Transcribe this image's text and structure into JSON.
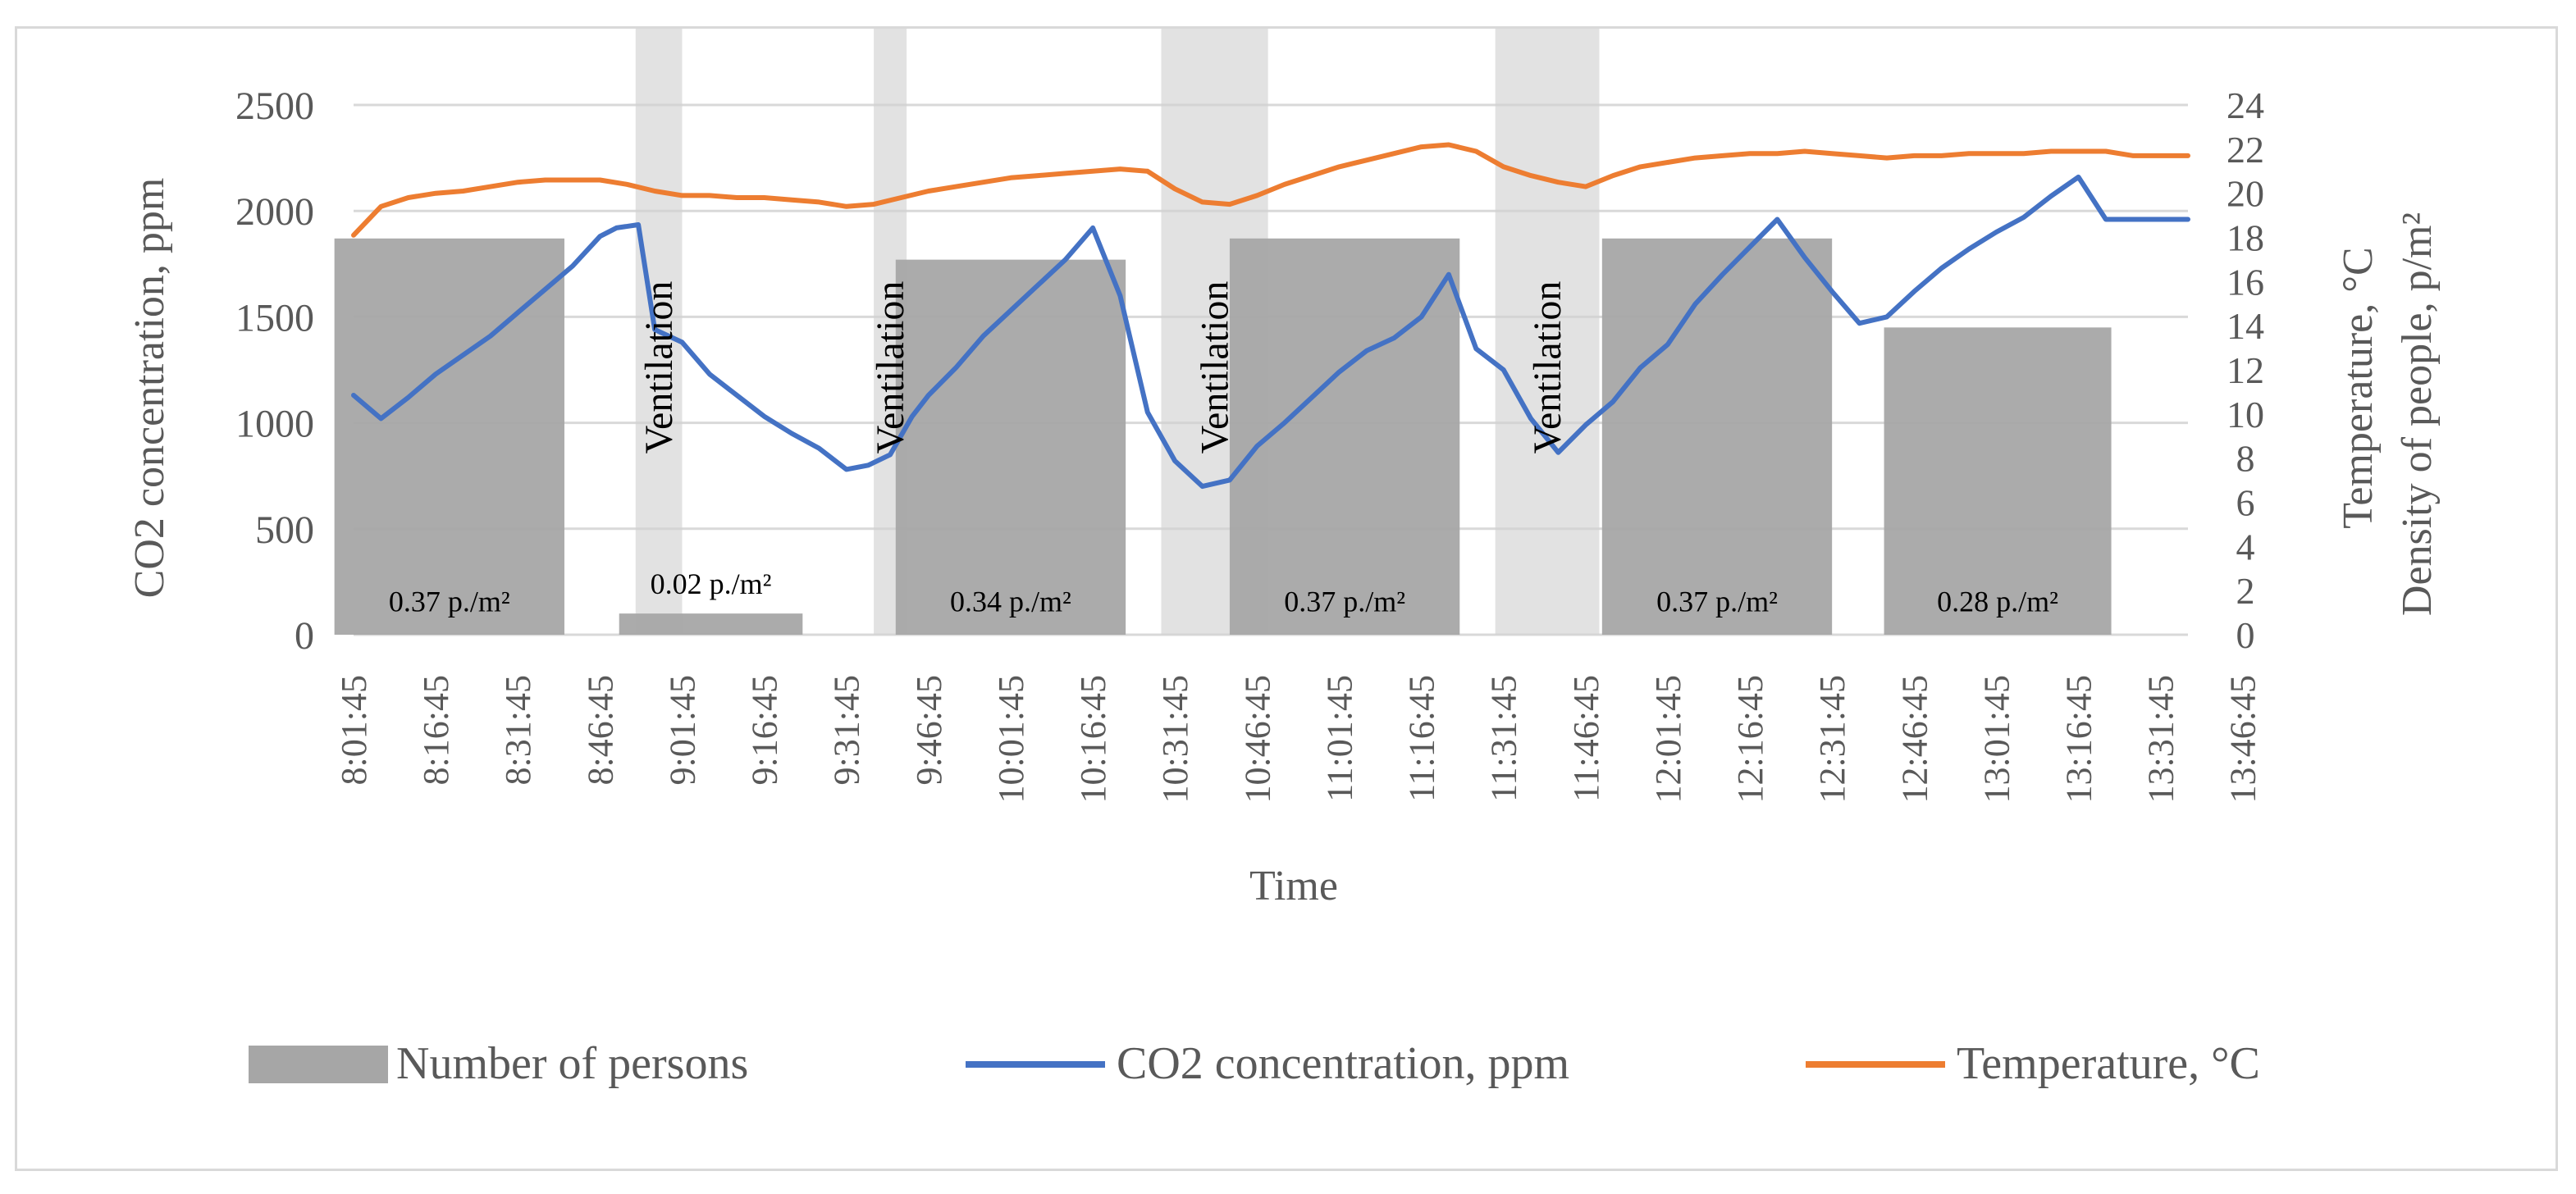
{
  "chart_data": {
    "type": "bar+line",
    "title": "",
    "xlabel": "Time",
    "ylabel_left": "CO2 concentration, ppm",
    "ylabel_right_1": "Temperature, °C",
    "ylabel_right_2": "Density of people, p/m²",
    "ylim_left": [
      0,
      2500
    ],
    "yticks_left": [
      "0",
      "500",
      "1000",
      "1500",
      "2000",
      "2500"
    ],
    "ylim_right": [
      0,
      24
    ],
    "yticks_right": [
      "0",
      "2",
      "4",
      "6",
      "8",
      "10",
      "12",
      "14",
      "16",
      "18",
      "20",
      "22",
      "24"
    ],
    "x_tick_labels": [
      "8:01:45",
      "8:16:45",
      "8:31:45",
      "8:46:45",
      "9:01:45",
      "9:16:45",
      "9:31:45",
      "9:46:45",
      "10:01:45",
      "10:16:45",
      "10:31:45",
      "10:46:45",
      "11:01:45",
      "11:16:45",
      "11:31:45",
      "11:46:45",
      "12:01:45",
      "12:16:45",
      "12:31:45",
      "12:46:45",
      "13:01:45",
      "13:16:45",
      "13:31:45",
      "13:46:45"
    ],
    "x_range_minutes": [
      0,
      335
    ],
    "grid": true,
    "legend_position": "bottom",
    "legend": [
      "Number of persons",
      "CO2 concentration, ppm",
      "Temperature, °C"
    ],
    "occupancy_blocks": [
      {
        "start_min": -3.5,
        "end_min": 38.5,
        "value": 1870,
        "label": "0.37 p./m²"
      },
      {
        "start_min": 48.5,
        "end_min": 82,
        "value": 100,
        "label": "0.02 p./m²"
      },
      {
        "start_min": 99,
        "end_min": 141,
        "value": 1770,
        "label": "0.34 p./m²"
      },
      {
        "start_min": 160,
        "end_min": 202,
        "value": 1870,
        "label": "0.37 p./m²"
      },
      {
        "start_min": 228,
        "end_min": 270,
        "value": 1870,
        "label": "0.37 p./m²"
      },
      {
        "start_min": 279.5,
        "end_min": 321,
        "value": 1450,
        "label": "0.28 p./m²"
      }
    ],
    "ventilation_periods": [
      {
        "start_min": 51.5,
        "end_min": 60,
        "label": "Ventilation"
      },
      {
        "start_min": 95,
        "end_min": 101,
        "label": "Ventilation"
      },
      {
        "start_min": 147.5,
        "end_min": 167,
        "label": "Ventilation"
      },
      {
        "start_min": 208.5,
        "end_min": 227.5,
        "label": "Ventilation"
      }
    ],
    "series": [
      {
        "name": "CO2 concentration, ppm",
        "axis": "left",
        "color": "#4472C4",
        "x": [
          0,
          5,
          10,
          15,
          20,
          25,
          30,
          35,
          40,
          45,
          48,
          52,
          55,
          60,
          65,
          70,
          75,
          80,
          85,
          90,
          94,
          98,
          102,
          105,
          110,
          115,
          120,
          125,
          130,
          135,
          140,
          145,
          150,
          155,
          160,
          165,
          170,
          175,
          180,
          185,
          190,
          195,
          200,
          205,
          210,
          215,
          220,
          225,
          230,
          235,
          240,
          245,
          250,
          255,
          260,
          265,
          270,
          275,
          280,
          285,
          290,
          295,
          300,
          305,
          310,
          315,
          320,
          325,
          330,
          335
        ],
        "values": [
          1130,
          1020,
          1120,
          1230,
          1320,
          1410,
          1520,
          1630,
          1740,
          1880,
          1920,
          1935,
          1440,
          1380,
          1230,
          1130,
          1030,
          950,
          880,
          780,
          800,
          850,
          1030,
          1130,
          1260,
          1410,
          1530,
          1650,
          1770,
          1920,
          1600,
          1050,
          820,
          700,
          730,
          890,
          1000,
          1120,
          1240,
          1340,
          1400,
          1500,
          1700,
          1350,
          1250,
          1020,
          860,
          990,
          1100,
          1260,
          1370,
          1560,
          1700,
          1830,
          1960,
          1780,
          1620,
          1470,
          1500,
          1620,
          1730,
          1820,
          1900,
          1970,
          2070,
          2160,
          1960,
          1960,
          1960,
          1960
        ]
      },
      {
        "name": "Temperature, °C",
        "axis": "right",
        "color": "#ED7D31",
        "x": [
          0,
          5,
          10,
          15,
          20,
          25,
          30,
          35,
          40,
          45,
          50,
          55,
          60,
          65,
          70,
          75,
          80,
          85,
          90,
          95,
          100,
          105,
          110,
          115,
          120,
          125,
          130,
          135,
          140,
          145,
          150,
          155,
          160,
          165,
          170,
          175,
          180,
          185,
          190,
          195,
          200,
          205,
          210,
          215,
          220,
          225,
          230,
          235,
          240,
          245,
          250,
          255,
          260,
          265,
          270,
          275,
          280,
          285,
          290,
          295,
          300,
          305,
          310,
          315,
          320,
          325,
          330,
          335
        ],
        "values": [
          18.1,
          19.4,
          19.8,
          20.0,
          20.1,
          20.3,
          20.5,
          20.6,
          20.6,
          20.6,
          20.4,
          20.1,
          19.9,
          19.9,
          19.8,
          19.8,
          19.7,
          19.6,
          19.4,
          19.5,
          19.8,
          20.1,
          20.3,
          20.5,
          20.7,
          20.8,
          20.9,
          21.0,
          21.1,
          21.0,
          20.2,
          19.6,
          19.5,
          19.9,
          20.4,
          20.8,
          21.2,
          21.5,
          21.8,
          22.1,
          22.2,
          21.9,
          21.2,
          20.8,
          20.5,
          20.3,
          20.8,
          21.2,
          21.4,
          21.6,
          21.7,
          21.8,
          21.8,
          21.9,
          21.8,
          21.7,
          21.6,
          21.7,
          21.7,
          21.8,
          21.8,
          21.8,
          21.9,
          21.9,
          21.9,
          21.7,
          21.7,
          21.7
        ]
      }
    ]
  }
}
